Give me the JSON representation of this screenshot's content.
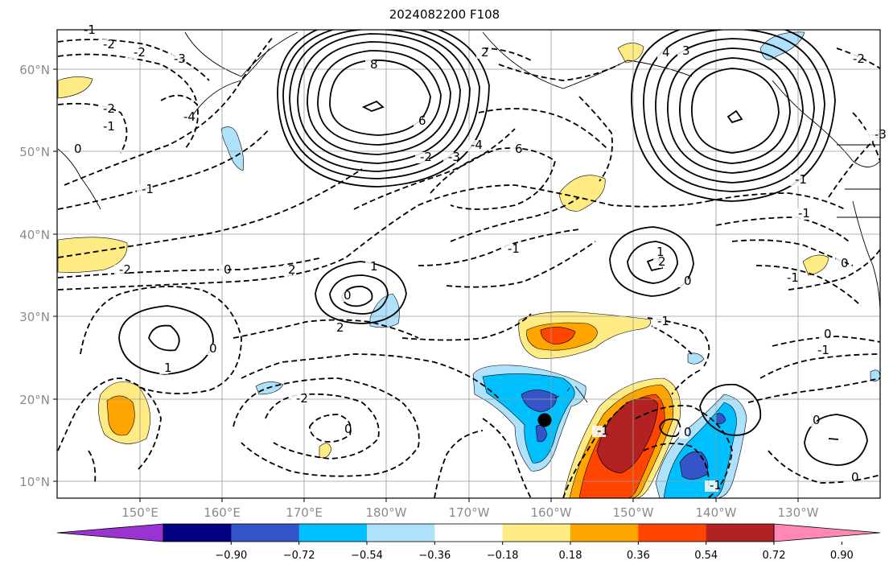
{
  "title": "2024082200 F108",
  "map": {
    "lat_ticks": [
      "60°N",
      "50°N",
      "40°N",
      "30°N",
      "20°N",
      "10°N"
    ],
    "lon_ticks": [
      "150°E",
      "160°E",
      "170°E",
      "180°W",
      "170°W",
      "160°W",
      "150°W",
      "140°W",
      "130°W"
    ],
    "contour_labels": [
      "-1",
      "-2",
      "-2",
      "-3",
      "-4",
      "-2",
      "-1",
      "0",
      "8",
      "6",
      "-2",
      "-3",
      "-4",
      "2",
      "6",
      "4",
      "3",
      "-2",
      "-3",
      "-1",
      "-1",
      "0",
      "-1",
      "-2",
      "0",
      "2",
      "1",
      "0",
      "2",
      "1",
      "0",
      "-1",
      "-1",
      "2",
      "-1",
      "0",
      "-2",
      "0",
      "-1",
      "1",
      "0",
      "-1",
      "0",
      "0",
      "-3",
      "-1",
      "0"
    ],
    "marker": "black-dot"
  },
  "colorbar": {
    "colors": [
      "#9a33d1",
      "#000080",
      "#3454c8",
      "#00bfff",
      "#aee1fb",
      "#ffffff",
      "#ffeb84",
      "#ffa500",
      "#ff4500",
      "#b22222",
      "#ff88b4"
    ],
    "labels": [
      "−0.90",
      "−0.72",
      "−0.54",
      "−0.36",
      "−0.18",
      "0.18",
      "0.36",
      "0.54",
      "0.72",
      "0.90"
    ]
  }
}
